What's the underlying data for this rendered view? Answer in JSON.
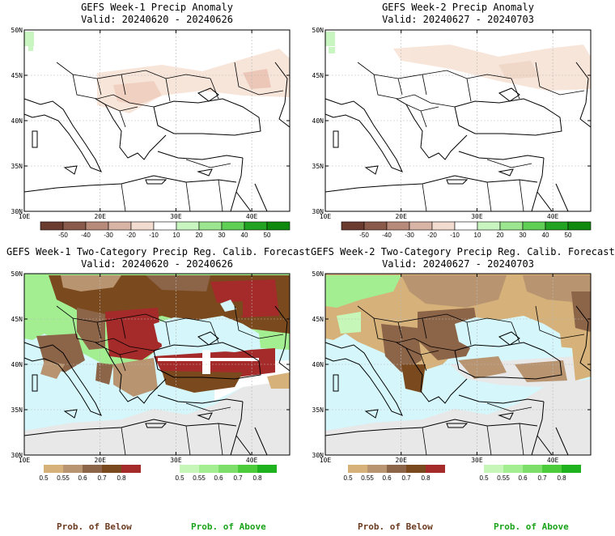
{
  "panels": [
    {
      "title": "GEFS Week-1 Precip Anomaly",
      "valid": "Valid: 20240620 - 20240626",
      "type": "anomaly",
      "ocean_fill": "#ffffff",
      "land_fill": "#ffffff"
    },
    {
      "title": "GEFS Week-2 Precip Anomaly",
      "valid": "Valid: 20240627 - 20240703",
      "type": "anomaly",
      "ocean_fill": "#ffffff",
      "land_fill": "#ffffff"
    },
    {
      "title": "GEFS Week-1 Two-Category Precip Reg. Calib. Forecast",
      "valid": "Valid: 20240620 - 20240626",
      "type": "probability",
      "ocean_fill": "#d5f7fb",
      "land_fill": "#e8e8e8"
    },
    {
      "title": "GEFS Week-2 Two-Category Precip Reg. Calib. Forecast",
      "valid": "Valid: 20240627 - 20240703",
      "type": "probability",
      "ocean_fill": "#d5f7fb",
      "land_fill": "#e8e8e8"
    }
  ],
  "map_axes": {
    "lat_labels": [
      "50N",
      "45N",
      "40N",
      "35N",
      "30N"
    ],
    "lon_labels": [
      "10E",
      "20E",
      "30E",
      "40E"
    ]
  },
  "anomaly_colorbar": {
    "labels": [
      "-50",
      "-40",
      "-30",
      "-20",
      "-10",
      "10",
      "20",
      "30",
      "40",
      "50"
    ],
    "colors": [
      "#6a3b2e",
      "#8a5a4a",
      "#b88a7a",
      "#d8b4a6",
      "#f2dccf",
      "#ffffff",
      "#c8f5c0",
      "#9be68f",
      "#5fcf55",
      "#22a422",
      "#0f8a0f"
    ]
  },
  "prob_below_colorbar": {
    "labels": [
      "0.5",
      "0.55",
      "0.6",
      "0.7",
      "0.8"
    ],
    "colors": [
      "#d6b27a",
      "#b89470",
      "#8c6448",
      "#7a4a1e",
      "#a52a2a"
    ]
  },
  "prob_above_colorbar": {
    "labels": [
      "0.5",
      "0.55",
      "0.6",
      "0.7",
      "0.8"
    ],
    "colors": [
      "#c6f7b8",
      "#a4ee92",
      "#7ede6a",
      "#4ccc3a",
      "#1fb21f"
    ]
  },
  "legend_text": {
    "below": "Prob. of Below",
    "above": "Prob. of Above",
    "below_color": "#6b3a1f",
    "above_color": "#1aa31a"
  }
}
